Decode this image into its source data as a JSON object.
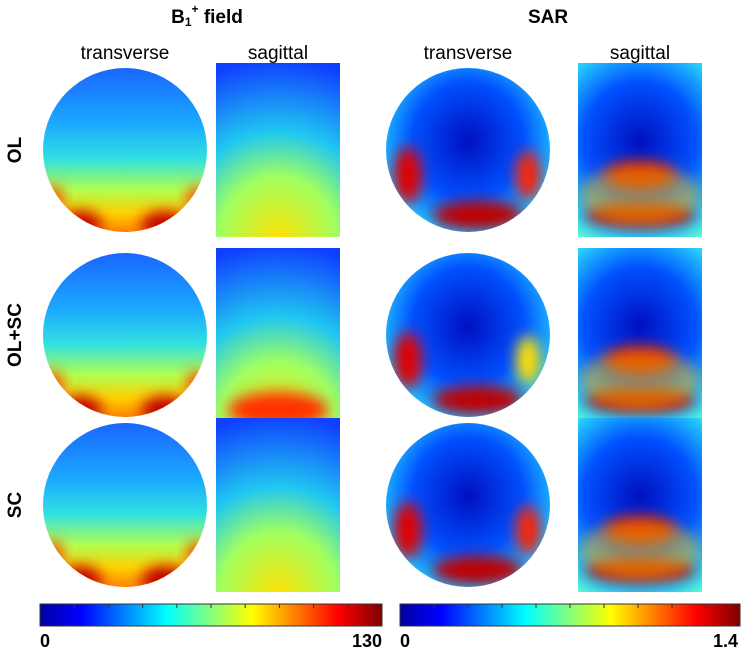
{
  "header": {
    "b1_title": {
      "base": "B",
      "sub": "1",
      "sup": "+",
      "rest": " field"
    },
    "sar_title": "SAR"
  },
  "columns": [
    "transverse",
    "sagittal",
    "transverse",
    "sagittal"
  ],
  "rows": [
    "OL",
    "OL+SC",
    "SC"
  ],
  "colorbars": [
    {
      "min": 0,
      "max": 130
    },
    {
      "min": 0,
      "max": 1.4
    }
  ]
}
